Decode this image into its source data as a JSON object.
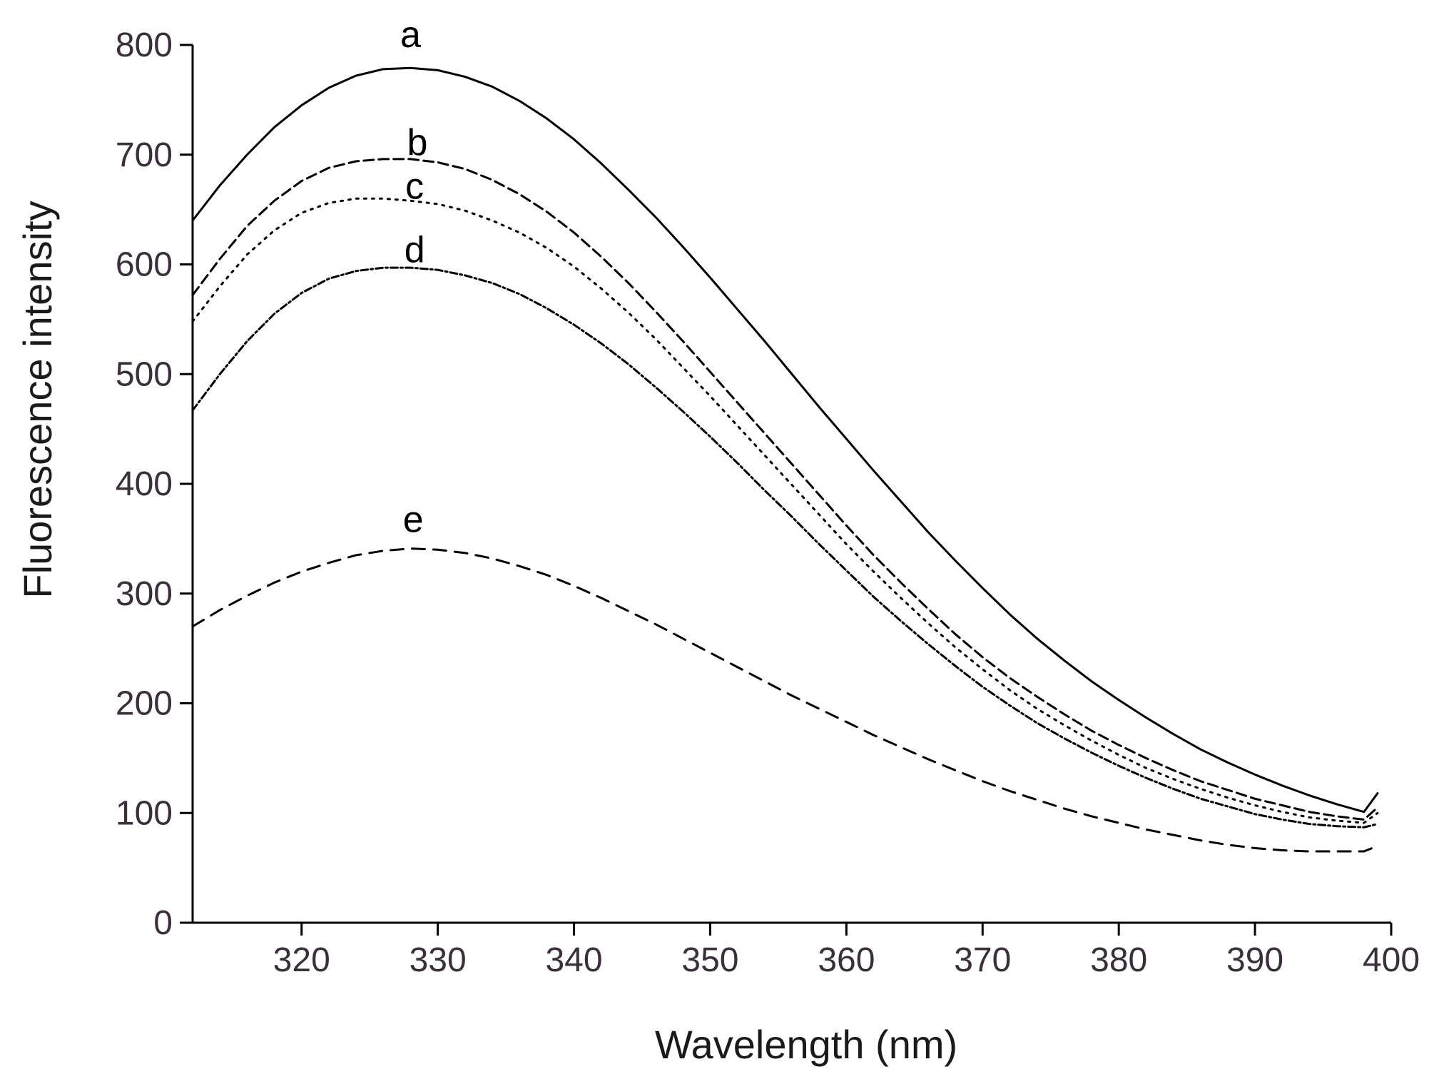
{
  "chart_data": {
    "type": "line",
    "title": "",
    "xlabel": "Wavelength (nm)",
    "ylabel": "Fluorescence intensity",
    "xlim": [
      312,
      400
    ],
    "ylim": [
      0,
      800
    ],
    "x_ticks": [
      320,
      330,
      340,
      350,
      360,
      370,
      380,
      390,
      400
    ],
    "y_ticks": [
      0,
      100,
      200,
      300,
      400,
      500,
      600,
      700,
      800
    ],
    "grid": false,
    "x": [
      312,
      314,
      316,
      318,
      320,
      322,
      324,
      326,
      328,
      330,
      332,
      334,
      336,
      338,
      340,
      342,
      344,
      346,
      348,
      350,
      352,
      354,
      356,
      358,
      360,
      362,
      364,
      366,
      368,
      370,
      372,
      374,
      376,
      378,
      380,
      382,
      384,
      386,
      388,
      390,
      392,
      394,
      396,
      398,
      399
    ],
    "series": [
      {
        "name": "a",
        "label": "a",
        "label_point": [
          328,
          798
        ],
        "values": [
          640,
          672,
          700,
          725,
          745,
          761,
          772,
          778,
          779,
          777,
          771,
          762,
          749,
          733,
          714,
          692,
          668,
          643,
          616,
          588,
          559,
          530,
          500,
          470,
          441,
          412,
          384,
          356,
          330,
          305,
          281,
          259,
          239,
          220,
          203,
          187,
          172,
          158,
          146,
          135,
          125,
          116,
          108,
          101,
          118
        ]
      },
      {
        "name": "b",
        "label": "b",
        "label_point": [
          328.5,
          700
        ],
        "values": [
          572,
          605,
          635,
          658,
          676,
          688,
          694,
          696,
          696,
          693,
          687,
          677,
          664,
          648,
          629,
          607,
          583,
          557,
          530,
          502,
          474,
          446,
          418,
          390,
          362,
          335,
          310,
          286,
          263,
          242,
          223,
          206,
          190,
          175,
          162,
          150,
          139,
          129,
          121,
          113,
          107,
          101,
          97,
          94,
          105
        ]
      },
      {
        "name": "c",
        "label": "c",
        "label_point": [
          328.3,
          660
        ],
        "values": [
          548,
          580,
          609,
          631,
          647,
          656,
          660,
          660,
          658,
          655,
          649,
          640,
          629,
          615,
          598,
          578,
          556,
          532,
          506,
          480,
          453,
          426,
          399,
          372,
          345,
          320,
          296,
          273,
          251,
          231,
          212,
          195,
          180,
          166,
          153,
          141,
          131,
          122,
          114,
          107,
          101,
          96,
          93,
          91,
          100
        ]
      },
      {
        "name": "d",
        "label": "d",
        "label_point": [
          328.3,
          602
        ],
        "values": [
          467,
          500,
          530,
          555,
          574,
          587,
          594,
          597,
          597,
          595,
          590,
          583,
          573,
          560,
          545,
          528,
          509,
          488,
          466,
          443,
          419,
          394,
          370,
          345,
          321,
          297,
          275,
          254,
          234,
          215,
          198,
          182,
          168,
          155,
          143,
          132,
          122,
          113,
          106,
          99,
          94,
          90,
          88,
          87,
          90
        ]
      },
      {
        "name": "e",
        "label": "e",
        "label_point": [
          328.2,
          356
        ],
        "values": [
          270,
          285,
          298,
          310,
          320,
          328,
          335,
          339,
          341,
          340,
          337,
          332,
          325,
          317,
          307,
          296,
          284,
          272,
          259,
          246,
          233,
          220,
          207,
          195,
          183,
          171,
          160,
          149,
          139,
          129,
          120,
          112,
          104,
          97,
          91,
          85,
          80,
          75,
          71,
          68,
          66,
          65,
          65,
          65,
          70
        ]
      }
    ]
  }
}
